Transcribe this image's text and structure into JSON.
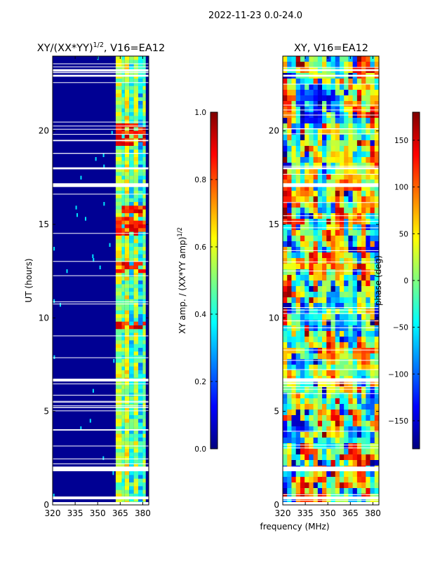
{
  "figure": {
    "suptitle": "2022-11-23 0.0-24.0",
    "shared_xlabel": "frequency (MHz)"
  },
  "colors": {
    "jet_stops": [
      "#00007f",
      "#0000ff",
      "#007fff",
      "#00ffff",
      "#7fff7f",
      "#ffff00",
      "#ff7f00",
      "#ff0000",
      "#7f0000"
    ],
    "axis": "#000000",
    "gap": "#ffffff"
  },
  "chart_data": [
    {
      "type": "heatmap",
      "name": "amplitude-ratio",
      "title_main": "XY/(XX*YY)",
      "title_exp": "1/2",
      "title_tail": ", V16=EA12",
      "xlabel": "",
      "ylabel": "UT (hours)",
      "xlim": [
        320,
        384
      ],
      "ylim": [
        0,
        24
      ],
      "xticks": [
        320,
        335,
        350,
        365,
        380
      ],
      "yticks": [
        0,
        5,
        10,
        15,
        20
      ],
      "colorbar": {
        "label_main": "XY amp. / (XX*YY amp)",
        "label_exp": "1/2",
        "range": [
          0.0,
          1.0
        ],
        "ticks": [
          "0.0",
          "0.2",
          "0.4",
          "0.6",
          "0.8",
          "1.0"
        ],
        "tick_values": [
          0.0,
          0.2,
          0.4,
          0.6,
          0.8,
          1.0
        ]
      },
      "quiet_value": 0.02,
      "active_band_mhz": [
        362,
        382
      ],
      "active_channels_mhz": [
        {
          "freq": 362,
          "value": 0.55
        },
        {
          "freq": 366,
          "value": 0.45
        },
        {
          "freq": 368,
          "value": 0.6
        },
        {
          "freq": 371,
          "value": 0.4
        },
        {
          "freq": 374,
          "value": 0.55
        },
        {
          "freq": 377,
          "value": 0.35
        },
        {
          "freq": 380,
          "value": 0.5
        }
      ],
      "bright_intervals_ut": [
        [
          14.5,
          16.0
        ],
        [
          12.5,
          13.0
        ],
        [
          19.3,
          20.3
        ],
        [
          9.3,
          9.8
        ]
      ],
      "bright_value": 0.85,
      "flagged_ut_intervals": [
        [
          0.0,
          0.15
        ],
        [
          0.3,
          0.45
        ],
        [
          1.8,
          2.05
        ],
        [
          6.6,
          6.75
        ],
        [
          17.0,
          17.2
        ],
        [
          17.95,
          18.05
        ],
        [
          22.9,
          23.0
        ],
        [
          23.2,
          23.3
        ]
      ]
    },
    {
      "type": "heatmap",
      "name": "phase",
      "title_main": "XY, V16=EA12",
      "xlabel": "",
      "ylabel": "",
      "xlim": [
        320,
        384
      ],
      "ylim": [
        0,
        24
      ],
      "xticks": [
        320,
        335,
        350,
        365,
        380
      ],
      "yticks": [
        0,
        5,
        10,
        15,
        20
      ],
      "colorbar": {
        "label_main": "phase (deg)",
        "range": [
          -180,
          180
        ],
        "ticks": [
          "−150",
          "−100",
          "−50",
          "0",
          "50",
          "100",
          "150"
        ],
        "tick_values": [
          -150,
          -100,
          -50,
          0,
          50,
          100,
          150
        ]
      },
      "phase_range_deg": [
        -180,
        180
      ],
      "flagged_ut_intervals": [
        [
          0.0,
          0.15
        ],
        [
          0.3,
          0.45
        ],
        [
          1.8,
          2.05
        ],
        [
          6.6,
          6.75
        ],
        [
          17.0,
          17.2
        ],
        [
          17.95,
          18.05
        ],
        [
          22.9,
          23.0
        ],
        [
          23.2,
          23.3
        ]
      ]
    }
  ]
}
